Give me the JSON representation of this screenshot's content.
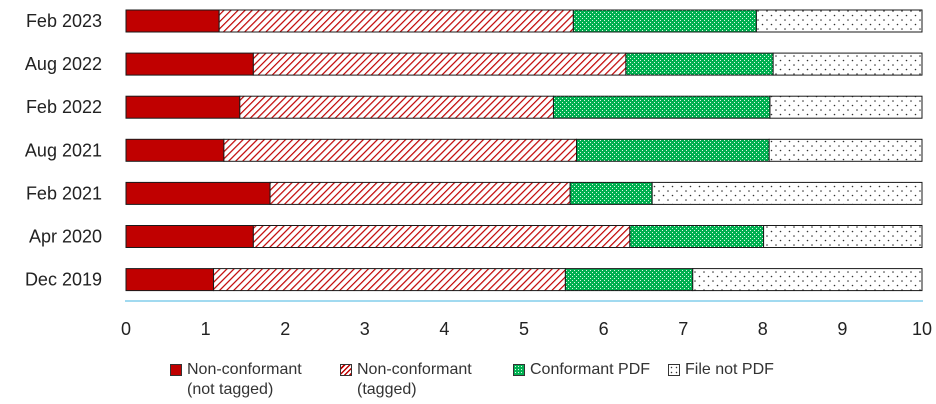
{
  "chart_data": {
    "type": "bar",
    "orientation": "horizontal",
    "stacked": true,
    "categories": [
      "Feb 2023",
      "Aug 2022",
      "Feb 2022",
      "Aug 2021",
      "Feb 2021",
      "Apr 2020",
      "Dec 2019"
    ],
    "series": [
      {
        "name": "Non-conformant\n(not tagged)",
        "values": [
          1.17,
          1.6,
          1.43,
          1.23,
          1.81,
          1.6,
          1.1
        ],
        "color": "#c00000",
        "pattern": "solid"
      },
      {
        "name": "Non-conformant\n(tagged)",
        "values": [
          4.45,
          4.68,
          3.94,
          4.43,
          3.77,
          4.73,
          4.42
        ],
        "color": "#c00000",
        "pattern": "diagonal-hatch"
      },
      {
        "name": "Conformant PDF",
        "values": [
          2.3,
          1.85,
          2.72,
          2.42,
          1.03,
          1.68,
          1.6
        ],
        "color": "#00b050",
        "pattern": "dots"
      },
      {
        "name": "File not PDF",
        "values": [
          2.08,
          1.87,
          1.91,
          1.92,
          3.39,
          1.99,
          2.88
        ],
        "color": "#ffffff",
        "pattern": "dots"
      }
    ],
    "xlim": [
      0,
      10
    ],
    "xticks": [
      "0",
      "1",
      "2",
      "3",
      "4",
      "5",
      "6",
      "7",
      "8",
      "9",
      "10"
    ],
    "xlabel": "",
    "ylabel": "",
    "title": "",
    "grid": false,
    "legend_position": "bottom"
  }
}
